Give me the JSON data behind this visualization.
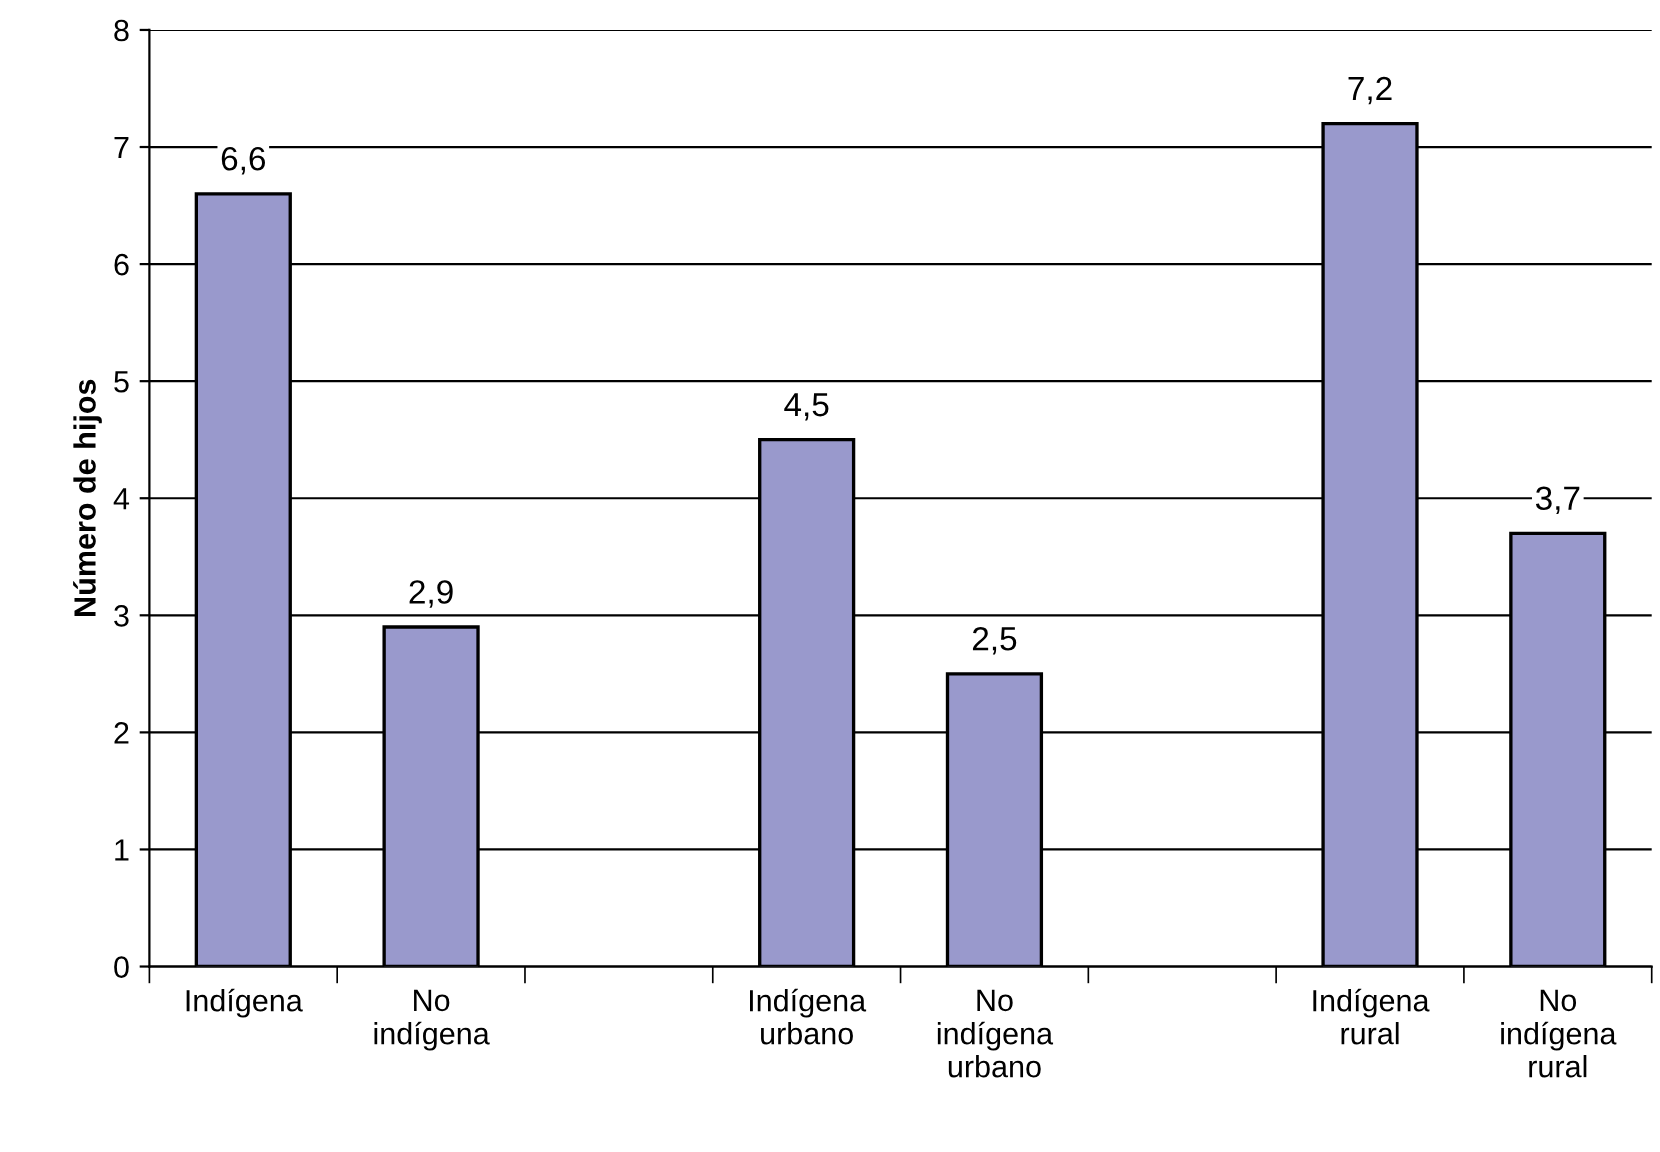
{
  "chart_data": {
    "type": "bar",
    "ylabel": "Número de hijos",
    "categories": [
      "Indígena",
      "No\nindígena",
      null,
      "Indígena\nurbano",
      "No\nindígena\nurbano",
      null,
      "Indígena\nrural",
      "No\nindígena\nrural"
    ],
    "values": [
      6.6,
      2.9,
      null,
      4.5,
      2.5,
      null,
      7.2,
      3.7
    ],
    "value_labels": [
      "6,6",
      "2,9",
      null,
      "4,5",
      "2,5",
      null,
      "7,2",
      "3,7"
    ],
    "color": "#9999cc",
    "ylim": [
      0,
      8
    ],
    "yticks": [
      0,
      1,
      2,
      3,
      4,
      5,
      6,
      7,
      8
    ],
    "grid": "y",
    "legend": false
  }
}
